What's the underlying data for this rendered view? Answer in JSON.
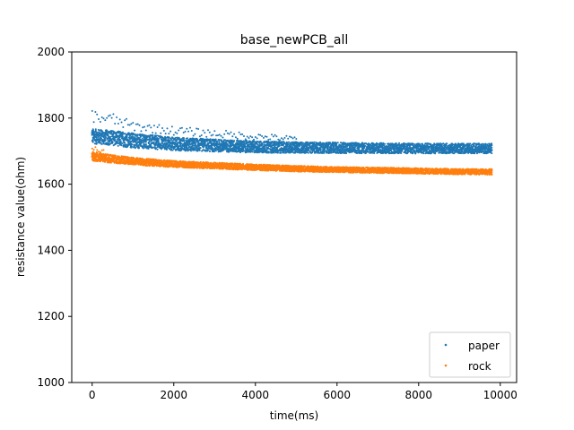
{
  "chart_data": {
    "type": "scatter",
    "title": "base_newPCB_all",
    "xlabel": "time(ms)",
    "ylabel": "resistance value(ohm)",
    "xlim": [
      -500,
      10400
    ],
    "ylim": [
      1000,
      2000
    ],
    "xticks": [
      0,
      2000,
      4000,
      6000,
      8000,
      10000
    ],
    "yticks": [
      1000,
      1200,
      1400,
      1600,
      1800,
      2000
    ],
    "xtick_labels": [
      "0",
      "2000",
      "4000",
      "6000",
      "8000",
      "10000"
    ],
    "ytick_labels": [
      "1000",
      "1200",
      "1400",
      "1600",
      "1800",
      "2000"
    ],
    "grid": false,
    "legend_placement": "lower-right",
    "series": [
      {
        "name": "paper",
        "color": "#1f77b4",
        "x": [
          0,
          500,
          1000,
          1500,
          2000,
          3000,
          4000,
          5000,
          6000,
          7000,
          8000,
          9000,
          9800
        ],
        "y": [
          1745,
          1740,
          1732,
          1727,
          1722,
          1717,
          1713,
          1711,
          1710,
          1709,
          1708,
          1708,
          1708
        ],
        "band_width": [
          45,
          45,
          45,
          42,
          40,
          38,
          36,
          34,
          33,
          32,
          31,
          30,
          30
        ],
        "outliers_upper": [
          {
            "x": 0,
            "y": 1825
          },
          {
            "x": 500,
            "y": 1815
          },
          {
            "x": 1000,
            "y": 1790
          },
          {
            "x": 2000,
            "y": 1775
          },
          {
            "x": 3000,
            "y": 1765
          },
          {
            "x": 4000,
            "y": 1755
          },
          {
            "x": 5000,
            "y": 1745
          }
        ]
      },
      {
        "name": "rock",
        "color": "#ff7f0e",
        "x": [
          0,
          500,
          1000,
          1500,
          2000,
          3000,
          4000,
          5000,
          6000,
          7000,
          8000,
          9000,
          9800
        ],
        "y": [
          1685,
          1676,
          1670,
          1665,
          1661,
          1656,
          1651,
          1647,
          1644,
          1642,
          1640,
          1638,
          1637
        ],
        "band_width": [
          28,
          24,
          22,
          21,
          20,
          19,
          18,
          18,
          17,
          17,
          17,
          17,
          17
        ],
        "outliers_upper": [
          {
            "x": 0,
            "y": 1715
          },
          {
            "x": 300,
            "y": 1705
          }
        ]
      }
    ]
  }
}
